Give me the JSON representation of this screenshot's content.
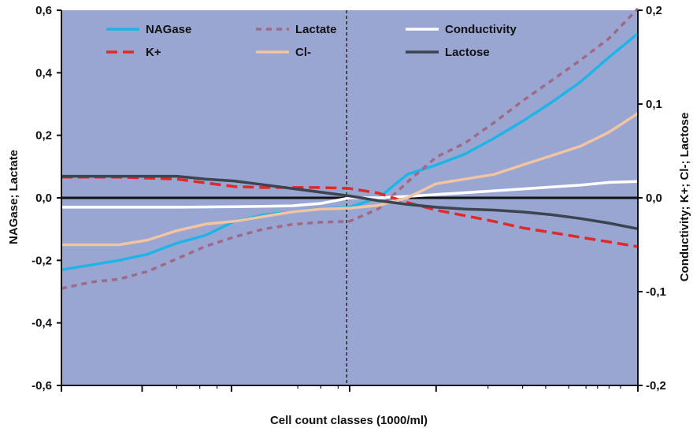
{
  "chart_data": {
    "type": "line",
    "title": "",
    "xlabel": "Cell count classes (1000/ml)",
    "ylabel_left": "NAGase; Lactate",
    "ylabel_right": "Conductivity; K+; Cl-; Lactose",
    "y_left_ticks": [
      "0,6",
      "0,4",
      "0,2",
      "0,0",
      "-0,2",
      "-0,4",
      "-0,6"
    ],
    "y_left_values": [
      0.6,
      0.4,
      0.2,
      0.0,
      -0.2,
      -0.4,
      -0.6
    ],
    "y_right_ticks": [
      "0,2",
      "0,1",
      "0,0",
      "-0,1",
      "-0,2"
    ],
    "y_right_values": [
      0.2,
      0.1,
      0.0,
      -0.1,
      -0.2
    ],
    "ylim_left": [
      -0.6,
      0.6
    ],
    "ylim_right": [
      -0.2,
      0.2
    ],
    "x_range": [
      0,
      1
    ],
    "x_major_ticks": [
      0,
      0.14,
      0.295,
      0.5,
      0.65,
      1.0
    ],
    "x_minor_ticks": [
      0.2,
      0.24,
      0.27,
      0.41,
      0.45,
      0.48,
      0.74,
      0.8,
      0.84,
      0.88,
      0.91,
      0.93,
      0.95,
      0.97
    ],
    "vertical_reference_x": 0.495,
    "background_color": "#9aa6d2",
    "legend": {
      "placement": "top",
      "entries": [
        {
          "key": "nagase",
          "label": "NAGase"
        },
        {
          "key": "lactate",
          "label": "Lactate"
        },
        {
          "key": "conductivity",
          "label": "Conductivity"
        },
        {
          "key": "kplus",
          "label": "K+"
        },
        {
          "key": "cl",
          "label": "Cl-"
        },
        {
          "key": "lactose",
          "label": "Lactose"
        }
      ]
    },
    "series": [
      {
        "key": "nagase",
        "name": "NAGase",
        "axis": "left",
        "color": "#1eb4e8",
        "dash": "solid",
        "x": [
          0,
          0.05,
          0.1,
          0.15,
          0.2,
          0.25,
          0.3,
          0.35,
          0.4,
          0.45,
          0.5,
          0.55,
          0.6,
          0.65,
          0.7,
          0.75,
          0.8,
          0.85,
          0.9,
          0.95,
          1.0
        ],
        "y": [
          -0.23,
          -0.215,
          -0.2,
          -0.18,
          -0.145,
          -0.12,
          -0.075,
          -0.055,
          -0.045,
          -0.035,
          -0.03,
          0.0,
          0.075,
          0.105,
          0.14,
          0.19,
          0.245,
          0.305,
          0.37,
          0.45,
          0.525
        ]
      },
      {
        "key": "lactate",
        "name": "Lactate",
        "axis": "left",
        "color": "#a06a86",
        "dash": "dash",
        "x": [
          0,
          0.05,
          0.1,
          0.15,
          0.2,
          0.25,
          0.3,
          0.35,
          0.4,
          0.45,
          0.5,
          0.55,
          0.6,
          0.65,
          0.7,
          0.75,
          0.8,
          0.85,
          0.9,
          0.95,
          1.0
        ],
        "y": [
          -0.29,
          -0.27,
          -0.26,
          -0.235,
          -0.195,
          -0.155,
          -0.125,
          -0.1,
          -0.085,
          -0.078,
          -0.075,
          -0.035,
          0.05,
          0.13,
          0.175,
          0.24,
          0.31,
          0.375,
          0.44,
          0.51,
          0.605
        ]
      },
      {
        "key": "conductivity",
        "name": "Conductivity",
        "axis": "right",
        "color": "#ffffff",
        "dash": "solid",
        "x": [
          0,
          0.1,
          0.2,
          0.3,
          0.35,
          0.4,
          0.45,
          0.5,
          0.55,
          0.6,
          0.65,
          0.7,
          0.75,
          0.8,
          0.85,
          0.9,
          0.95,
          1.0
        ],
        "y": [
          -0.01,
          -0.01,
          -0.01,
          -0.0095,
          -0.009,
          -0.0085,
          -0.006,
          0.0,
          0.0,
          0.0015,
          0.0035,
          0.0055,
          0.0075,
          0.0095,
          0.0115,
          0.0135,
          0.0165,
          0.0175
        ]
      },
      {
        "key": "kplus",
        "name": "K+",
        "axis": "right",
        "color": "#e02a2a",
        "dash": "longdash",
        "x": [
          0,
          0.1,
          0.15,
          0.2,
          0.25,
          0.3,
          0.35,
          0.4,
          0.45,
          0.5,
          0.55,
          0.6,
          0.65,
          0.7,
          0.75,
          0.8,
          0.85,
          0.9,
          0.95,
          1.0
        ],
        "y": [
          0.022,
          0.022,
          0.021,
          0.02,
          0.016,
          0.012,
          0.011,
          0.011,
          0.011,
          0.01,
          0.005,
          -0.005,
          -0.013,
          -0.019,
          -0.025,
          -0.032,
          -0.037,
          -0.042,
          -0.047,
          -0.052
        ]
      },
      {
        "key": "cl",
        "name": "Cl-",
        "axis": "right",
        "color": "#f2c4a2",
        "dash": "solid",
        "x": [
          0,
          0.05,
          0.1,
          0.15,
          0.2,
          0.25,
          0.3,
          0.35,
          0.4,
          0.45,
          0.5,
          0.55,
          0.6,
          0.65,
          0.7,
          0.75,
          0.8,
          0.85,
          0.9,
          0.95,
          1.0
        ],
        "y": [
          -0.05,
          -0.05,
          -0.05,
          -0.045,
          -0.035,
          -0.028,
          -0.025,
          -0.02,
          -0.015,
          -0.012,
          -0.011,
          -0.008,
          0.0,
          0.015,
          0.02,
          0.025,
          0.035,
          0.045,
          0.055,
          0.07,
          0.09
        ]
      },
      {
        "key": "lactose",
        "name": "Lactose",
        "axis": "right",
        "color": "#3c4450",
        "dash": "solid",
        "x": [
          0,
          0.1,
          0.15,
          0.2,
          0.25,
          0.3,
          0.35,
          0.4,
          0.45,
          0.5,
          0.55,
          0.6,
          0.65,
          0.7,
          0.75,
          0.8,
          0.85,
          0.9,
          0.95,
          1.0
        ],
        "y": [
          0.023,
          0.023,
          0.023,
          0.023,
          0.02,
          0.018,
          0.014,
          0.01,
          0.006,
          0.002,
          -0.003,
          -0.007,
          -0.01,
          -0.012,
          -0.013,
          -0.015,
          -0.018,
          -0.022,
          -0.027,
          -0.033
        ]
      }
    ]
  }
}
